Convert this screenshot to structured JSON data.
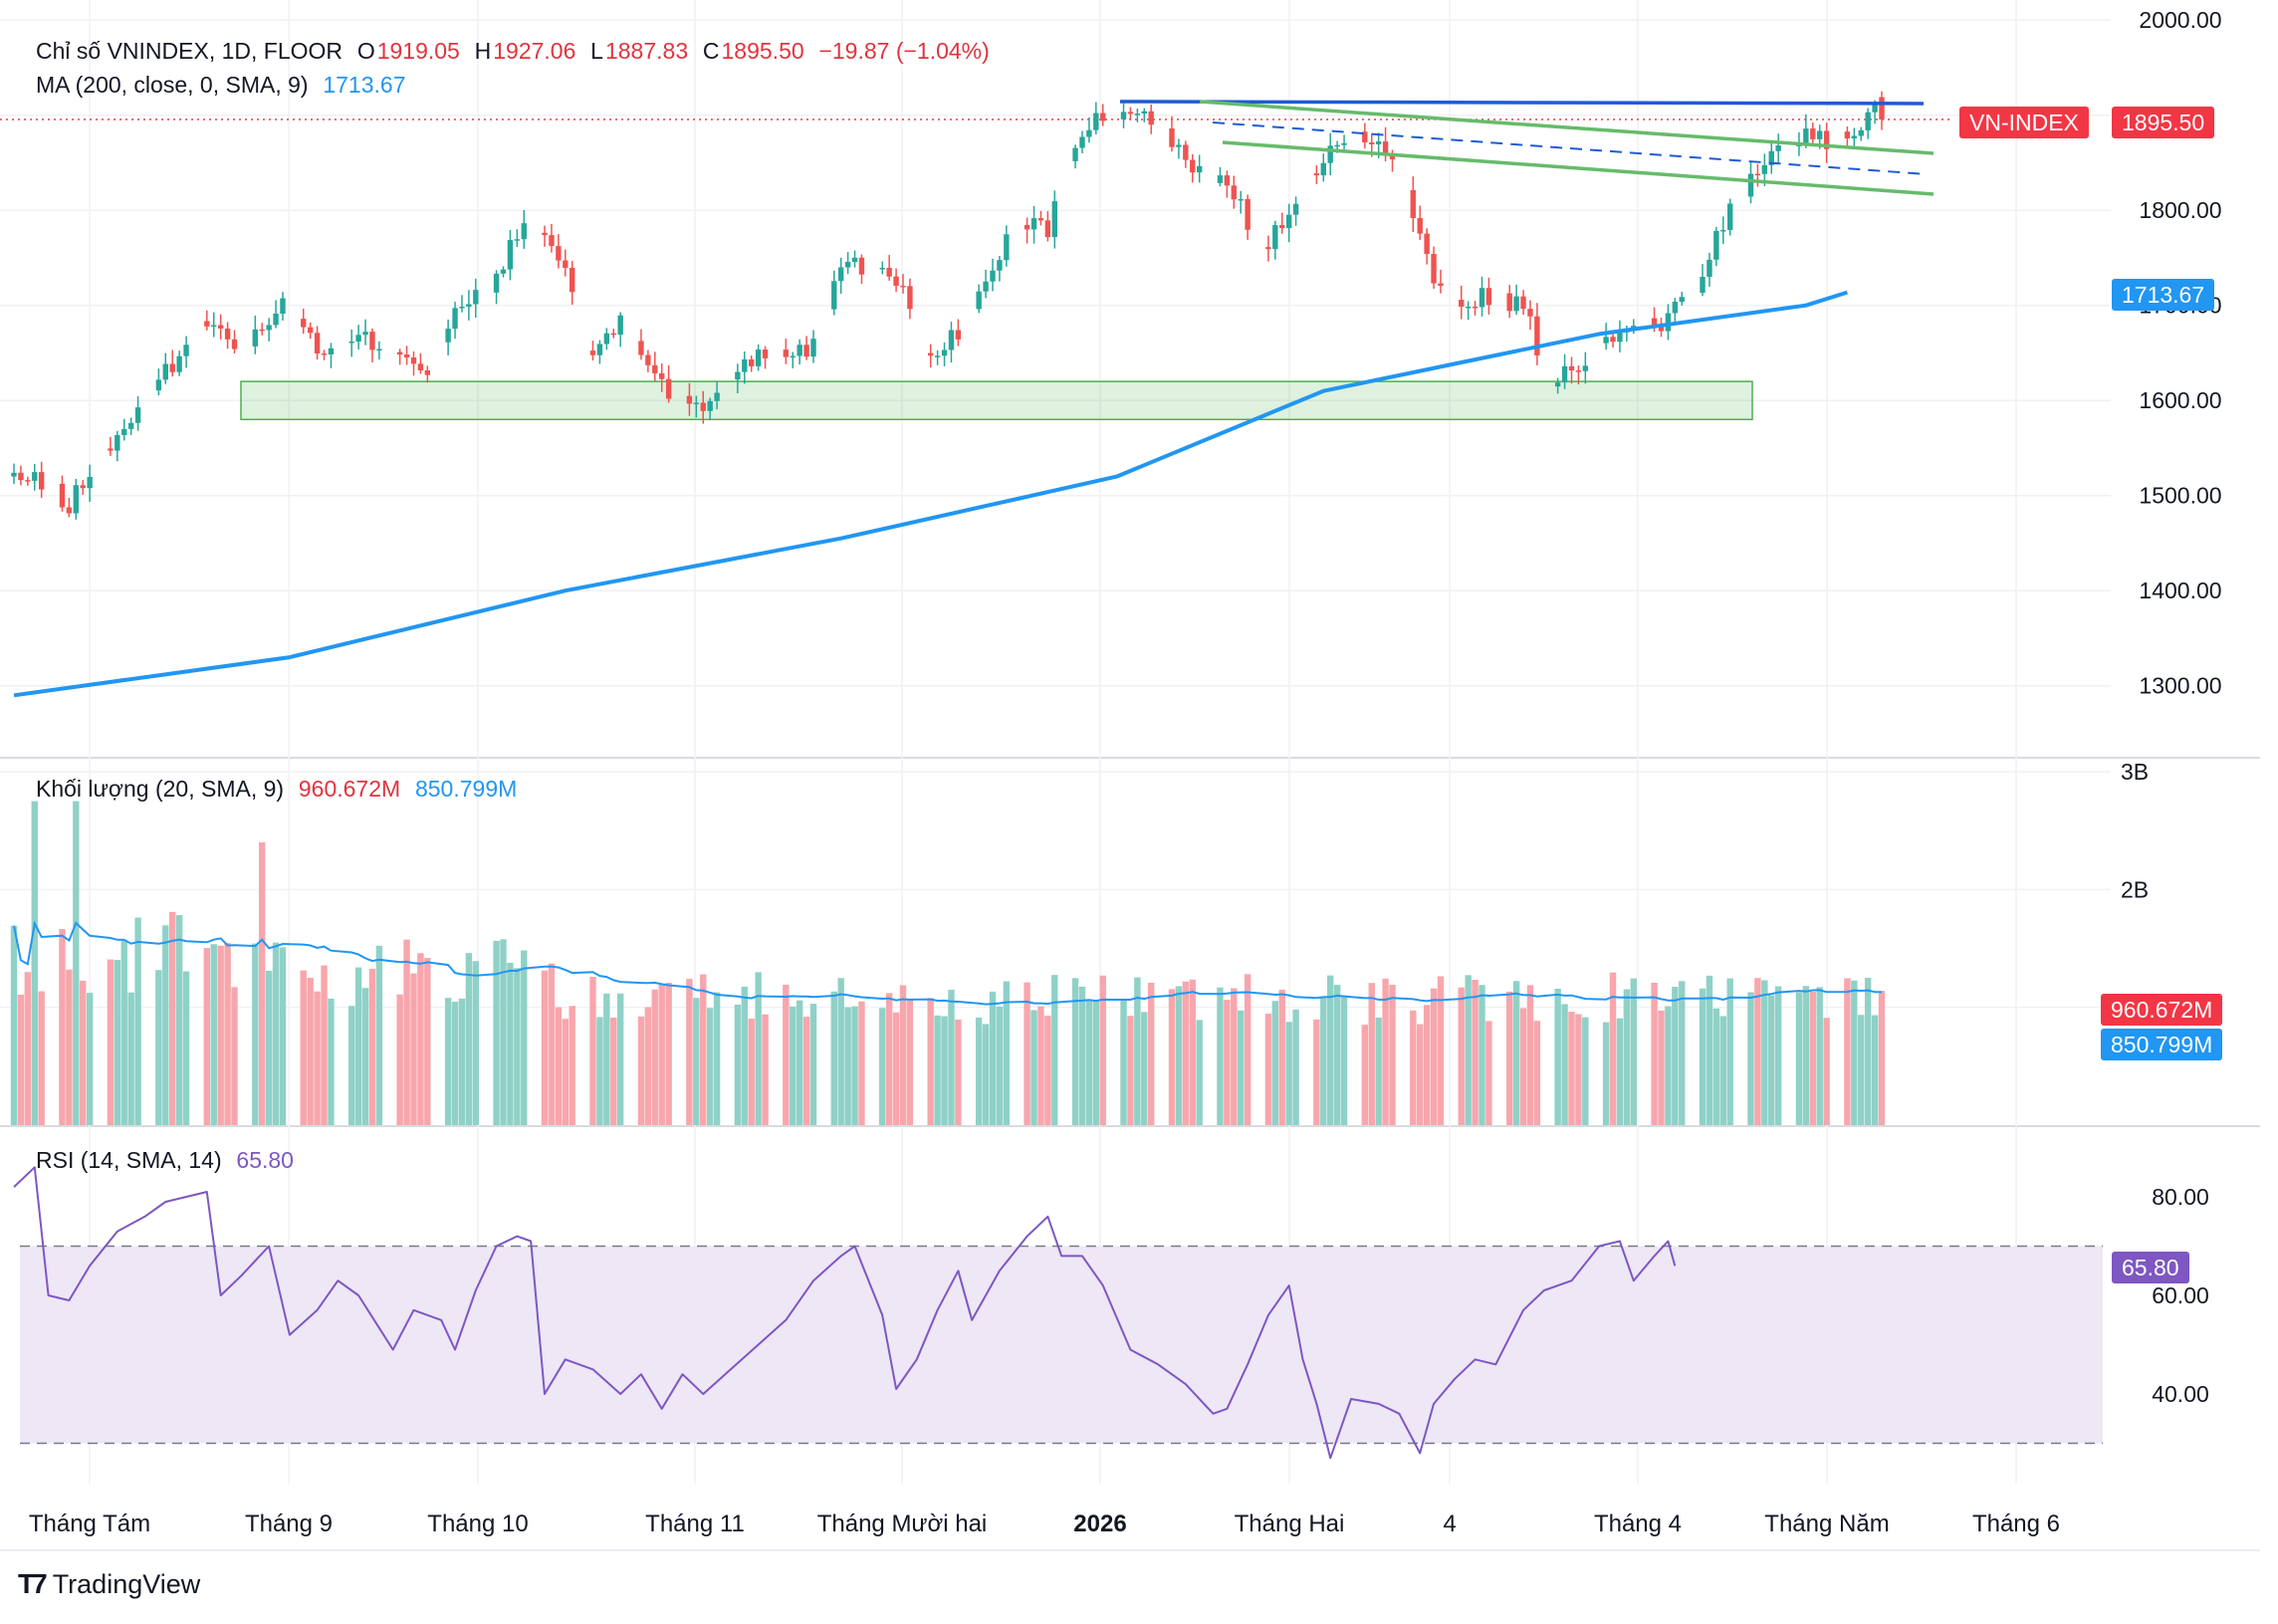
{
  "header": {
    "symbol_label": "Chỉ số VNINDEX, 1D, FLOOR",
    "open_label": "O",
    "open_value": "1919.05",
    "high_label": "H",
    "high_value": "1927.06",
    "low_label": "L",
    "low_value": "1887.83",
    "close_label": "C",
    "close_value": "1895.50",
    "change": "−19.87 (−1.04%)",
    "ma_label": "MA (200, close, 0, SMA, 9)",
    "ma_value": "1713.67"
  },
  "volume_legend": {
    "label": "Khối lượng (20, SMA, 9)",
    "value1": "960.672M",
    "value2": "850.799M"
  },
  "rsi_legend": {
    "label": "RSI (14, SMA, 14)",
    "value": "65.80"
  },
  "badges": {
    "vnindex_name": "VN-INDEX",
    "vnindex_price": "1895.50",
    "ma_value": "1713.67",
    "vol_value": "960.672M",
    "vol_ma_value": "850.799M",
    "rsi_value": "65.80"
  },
  "branding": {
    "logo_text": "TradingView"
  },
  "colors": {
    "up": "#26a69a",
    "down": "#ef5350",
    "ma": "#2196f3",
    "vol_up": "#8fd1c7",
    "vol_down": "#f7a6ac",
    "rsi": "#7e57c2",
    "rsi_band": "#ede7f6",
    "trend_blue": "#1e5bd6",
    "trend_green": "#66bb6a",
    "badge_red": "#f23645"
  },
  "chart_data": [
    {
      "type": "candlestick",
      "panel": "price",
      "title": "Chỉ số VNINDEX, 1D, FLOOR",
      "y_ticks": [
        "2000.00",
        "1800.00",
        "1700.00",
        "1600.00",
        "1500.00",
        "1400.00",
        "1300.00"
      ],
      "ylim": [
        1230,
        2005
      ],
      "x_ticks": [
        "Tháng Tám",
        "Tháng 9",
        "Tháng 10",
        "Tháng 11",
        "Tháng Mười hai",
        "2026",
        "Tháng Hai",
        "4",
        "Tháng 4",
        "Tháng Năm",
        "Tháng 6"
      ],
      "bar_count": 197,
      "waypoints": [
        [
          0,
          1520
        ],
        [
          5,
          1510
        ],
        [
          8,
          1490
        ],
        [
          12,
          1535
        ],
        [
          20,
          1610
        ],
        [
          25,
          1660
        ],
        [
          29,
          1690
        ],
        [
          33,
          1650
        ],
        [
          37,
          1690
        ],
        [
          40,
          1700
        ],
        [
          45,
          1645
        ],
        [
          50,
          1665
        ],
        [
          57,
          1650
        ],
        [
          60,
          1630
        ],
        [
          64,
          1690
        ],
        [
          70,
          1725
        ],
        [
          73,
          1780
        ],
        [
          75,
          1790
        ],
        [
          80,
          1740
        ],
        [
          83,
          1650
        ],
        [
          86,
          1660
        ],
        [
          88,
          1690
        ],
        [
          92,
          1640
        ],
        [
          96,
          1600
        ],
        [
          100,
          1590
        ],
        [
          103,
          1620
        ],
        [
          108,
          1650
        ],
        [
          115,
          1655
        ],
        [
          120,
          1740
        ],
        [
          126,
          1745
        ],
        [
          129,
          1720
        ],
        [
          133,
          1640
        ],
        [
          138,
          1680
        ],
        [
          141,
          1720
        ],
        [
          145,
          1790
        ],
        [
          150,
          1780
        ],
        [
          154,
          1870
        ],
        [
          158,
          1900
        ],
        [
          162,
          1905
        ],
        [
          166,
          1890
        ],
        [
          170,
          1850
        ],
        [
          176,
          1830
        ],
        [
          181,
          1760
        ],
        [
          186,
          1800
        ],
        [
          191,
          1870
        ],
        [
          197,
          1880
        ],
        [
          202,
          1825
        ],
        [
          206,
          1720
        ],
        [
          208,
          1700
        ],
        [
          214,
          1710
        ],
        [
          219,
          1700
        ],
        [
          223,
          1610
        ],
        [
          227,
          1640
        ],
        [
          232,
          1660
        ],
        [
          236,
          1690
        ],
        [
          239,
          1680
        ],
        [
          244,
          1720
        ],
        [
          248,
          1790
        ],
        [
          252,
          1830
        ],
        [
          256,
          1860
        ],
        [
          260,
          1880
        ],
        [
          264,
          1870
        ],
        [
          268,
          1895
        ],
        [
          270,
          1918
        ],
        [
          271,
          1895.5
        ]
      ],
      "last_candle": {
        "open": 1919.05,
        "high": 1927.06,
        "low": 1887.83,
        "close": 1895.5,
        "change": -19.87,
        "change_pct": -1.04
      },
      "ma200": {
        "name": "MA (200, close, 0, SMA, 9)",
        "last": 1713.67,
        "path": [
          [
            0,
            1290
          ],
          [
            40,
            1330
          ],
          [
            80,
            1400
          ],
          [
            120,
            1455
          ],
          [
            160,
            1520
          ],
          [
            190,
            1610
          ],
          [
            210,
            1640
          ],
          [
            230,
            1670
          ],
          [
            260,
            1700
          ],
          [
            266,
            1713.67
          ]
        ]
      },
      "annotations": [
        {
          "kind": "resistance_line",
          "from": [
            1920
          ],
          "to": [
            1920
          ]
        },
        {
          "kind": "support_zone",
          "range": [
            1580,
            1620
          ]
        },
        {
          "kind": "channel_upper",
          "from": 1925,
          "to": 1862
        },
        {
          "kind": "channel_lower",
          "from": 1870,
          "to": 1820
        }
      ]
    },
    {
      "type": "bar",
      "panel": "volume",
      "title": "Khối lượng (20, SMA, 9)",
      "y_ticks": [
        "3B",
        "2B"
      ],
      "ylim": [
        0,
        3.05
      ],
      "unit": "B",
      "last_volume_M": 960.672,
      "last_volume_ma_M": 850.799
    },
    {
      "type": "line",
      "panel": "rsi",
      "title": "RSI (14, SMA, 14)",
      "y_ticks": [
        "80.00",
        "60.00",
        "40.00"
      ],
      "ylim": [
        20,
        92
      ],
      "upper_band": 70,
      "lower_band": 30,
      "last": 65.8,
      "points": [
        [
          0,
          82
        ],
        [
          3,
          86
        ],
        [
          5,
          60
        ],
        [
          8,
          59
        ],
        [
          11,
          66
        ],
        [
          15,
          73
        ],
        [
          19,
          76
        ],
        [
          22,
          79
        ],
        [
          25,
          80
        ],
        [
          28,
          81
        ],
        [
          30,
          60
        ],
        [
          33,
          64
        ],
        [
          37,
          70
        ],
        [
          40,
          52
        ],
        [
          44,
          57
        ],
        [
          47,
          63
        ],
        [
          50,
          60
        ],
        [
          55,
          49
        ],
        [
          58,
          57
        ],
        [
          62,
          55
        ],
        [
          64,
          49
        ],
        [
          67,
          61
        ],
        [
          70,
          70
        ],
        [
          73,
          72
        ],
        [
          75,
          71
        ],
        [
          77,
          40
        ],
        [
          80,
          47
        ],
        [
          84,
          45
        ],
        [
          88,
          40
        ],
        [
          91,
          44
        ],
        [
          94,
          37
        ],
        [
          97,
          44
        ],
        [
          100,
          40
        ],
        [
          104,
          45
        ],
        [
          108,
          50
        ],
        [
          112,
          55
        ],
        [
          116,
          63
        ],
        [
          120,
          68
        ],
        [
          122,
          70
        ],
        [
          126,
          56
        ],
        [
          128,
          41
        ],
        [
          131,
          47
        ],
        [
          134,
          57
        ],
        [
          137,
          65
        ],
        [
          139,
          55
        ],
        [
          143,
          65
        ],
        [
          147,
          72
        ],
        [
          150,
          76
        ],
        [
          152,
          68
        ],
        [
          155,
          68
        ],
        [
          158,
          62
        ],
        [
          162,
          49
        ],
        [
          166,
          46
        ],
        [
          170,
          42
        ],
        [
          174,
          36
        ],
        [
          176,
          37
        ],
        [
          179,
          46
        ],
        [
          182,
          56
        ],
        [
          185,
          62
        ],
        [
          187,
          47
        ],
        [
          189,
          38
        ],
        [
          191,
          27
        ],
        [
          194,
          39
        ],
        [
          198,
          38
        ],
        [
          201,
          36
        ],
        [
          204,
          28
        ],
        [
          206,
          38
        ],
        [
          209,
          43
        ],
        [
          212,
          47
        ],
        [
          215,
          46
        ],
        [
          219,
          57
        ],
        [
          222,
          61
        ],
        [
          226,
          63
        ],
        [
          230,
          70
        ],
        [
          233,
          71
        ],
        [
          235,
          63
        ],
        [
          238,
          68
        ],
        [
          240,
          71
        ],
        [
          241,
          66
        ]
      ]
    }
  ]
}
